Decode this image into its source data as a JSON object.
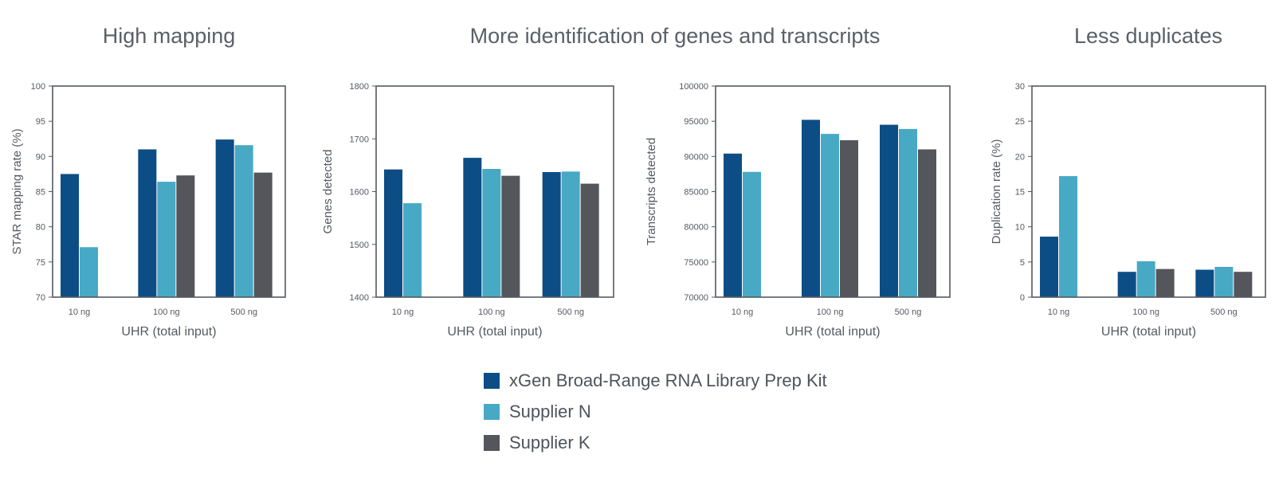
{
  "titles": {
    "high_mapping": "High mapping",
    "identification": "More identification of genes and transcripts",
    "duplicates": "Less duplicates"
  },
  "colors": {
    "xgen": "#0c4d85",
    "supplier_n": "#48a9c5",
    "supplier_k": "#54565b",
    "axis": "#555a61"
  },
  "legend": [
    {
      "label": "xGen Broad-Range RNA Library Prep Kit",
      "color": "#0c4d85"
    },
    {
      "label": "Supplier N",
      "color": "#48a9c5"
    },
    {
      "label": "Supplier K",
      "color": "#54565b"
    }
  ],
  "chart_data": [
    {
      "type": "bar",
      "categories": [
        "10 ng",
        "100 ng",
        "500 ng"
      ],
      "xlabel": "UHR (total input)",
      "ylabel": "STAR mapping rate (%)",
      "ylim": [
        70,
        100
      ],
      "yticks": [
        70,
        75,
        80,
        85,
        90,
        95,
        100
      ],
      "series": [
        {
          "name": "xGen Broad-Range RNA Library Prep Kit",
          "values": [
            87.5,
            91.0,
            92.4
          ]
        },
        {
          "name": "Supplier N",
          "values": [
            77.1,
            86.4,
            91.6
          ]
        },
        {
          "name": "Supplier K",
          "values": [
            null,
            87.3,
            87.7
          ]
        }
      ]
    },
    {
      "type": "bar",
      "categories": [
        "10 ng",
        "100 ng",
        "500 ng"
      ],
      "xlabel": "UHR (total input)",
      "ylabel": "Genes detected",
      "ylim": [
        1400,
        1800
      ],
      "yticks": [
        1400,
        1500,
        1600,
        1700,
        1800
      ],
      "series": [
        {
          "name": "xGen Broad-Range RNA Library Prep Kit",
          "values": [
            1642,
            1664,
            1637
          ]
        },
        {
          "name": "Supplier N",
          "values": [
            1578,
            1643,
            1638
          ]
        },
        {
          "name": "Supplier K",
          "values": [
            null,
            1630,
            1615
          ]
        }
      ]
    },
    {
      "type": "bar",
      "categories": [
        "10 ng",
        "100 ng",
        "500 ng"
      ],
      "xlabel": "UHR (total input)",
      "ylabel": "Transcripts detected",
      "ylim": [
        70000,
        100000
      ],
      "yticks": [
        70000,
        75000,
        80000,
        85000,
        90000,
        95000,
        100000
      ],
      "series": [
        {
          "name": "xGen Broad-Range RNA Library Prep Kit",
          "values": [
            90400,
            95200,
            94500
          ]
        },
        {
          "name": "Supplier N",
          "values": [
            87800,
            93200,
            93900
          ]
        },
        {
          "name": "Supplier K",
          "values": [
            null,
            92300,
            91000
          ]
        }
      ]
    },
    {
      "type": "bar",
      "categories": [
        "10 ng",
        "100 ng",
        "500 ng"
      ],
      "xlabel": "UHR (total input)",
      "ylabel": "Duplication rate (%)",
      "ylim": [
        0,
        30
      ],
      "yticks": [
        0,
        5,
        10,
        15,
        20,
        25,
        30
      ],
      "series": [
        {
          "name": "xGen Broad-Range RNA Library Prep Kit",
          "values": [
            8.6,
            3.6,
            3.9
          ]
        },
        {
          "name": "Supplier N",
          "values": [
            17.2,
            5.1,
            4.3
          ]
        },
        {
          "name": "Supplier K",
          "values": [
            null,
            4.0,
            3.6
          ]
        }
      ]
    }
  ]
}
